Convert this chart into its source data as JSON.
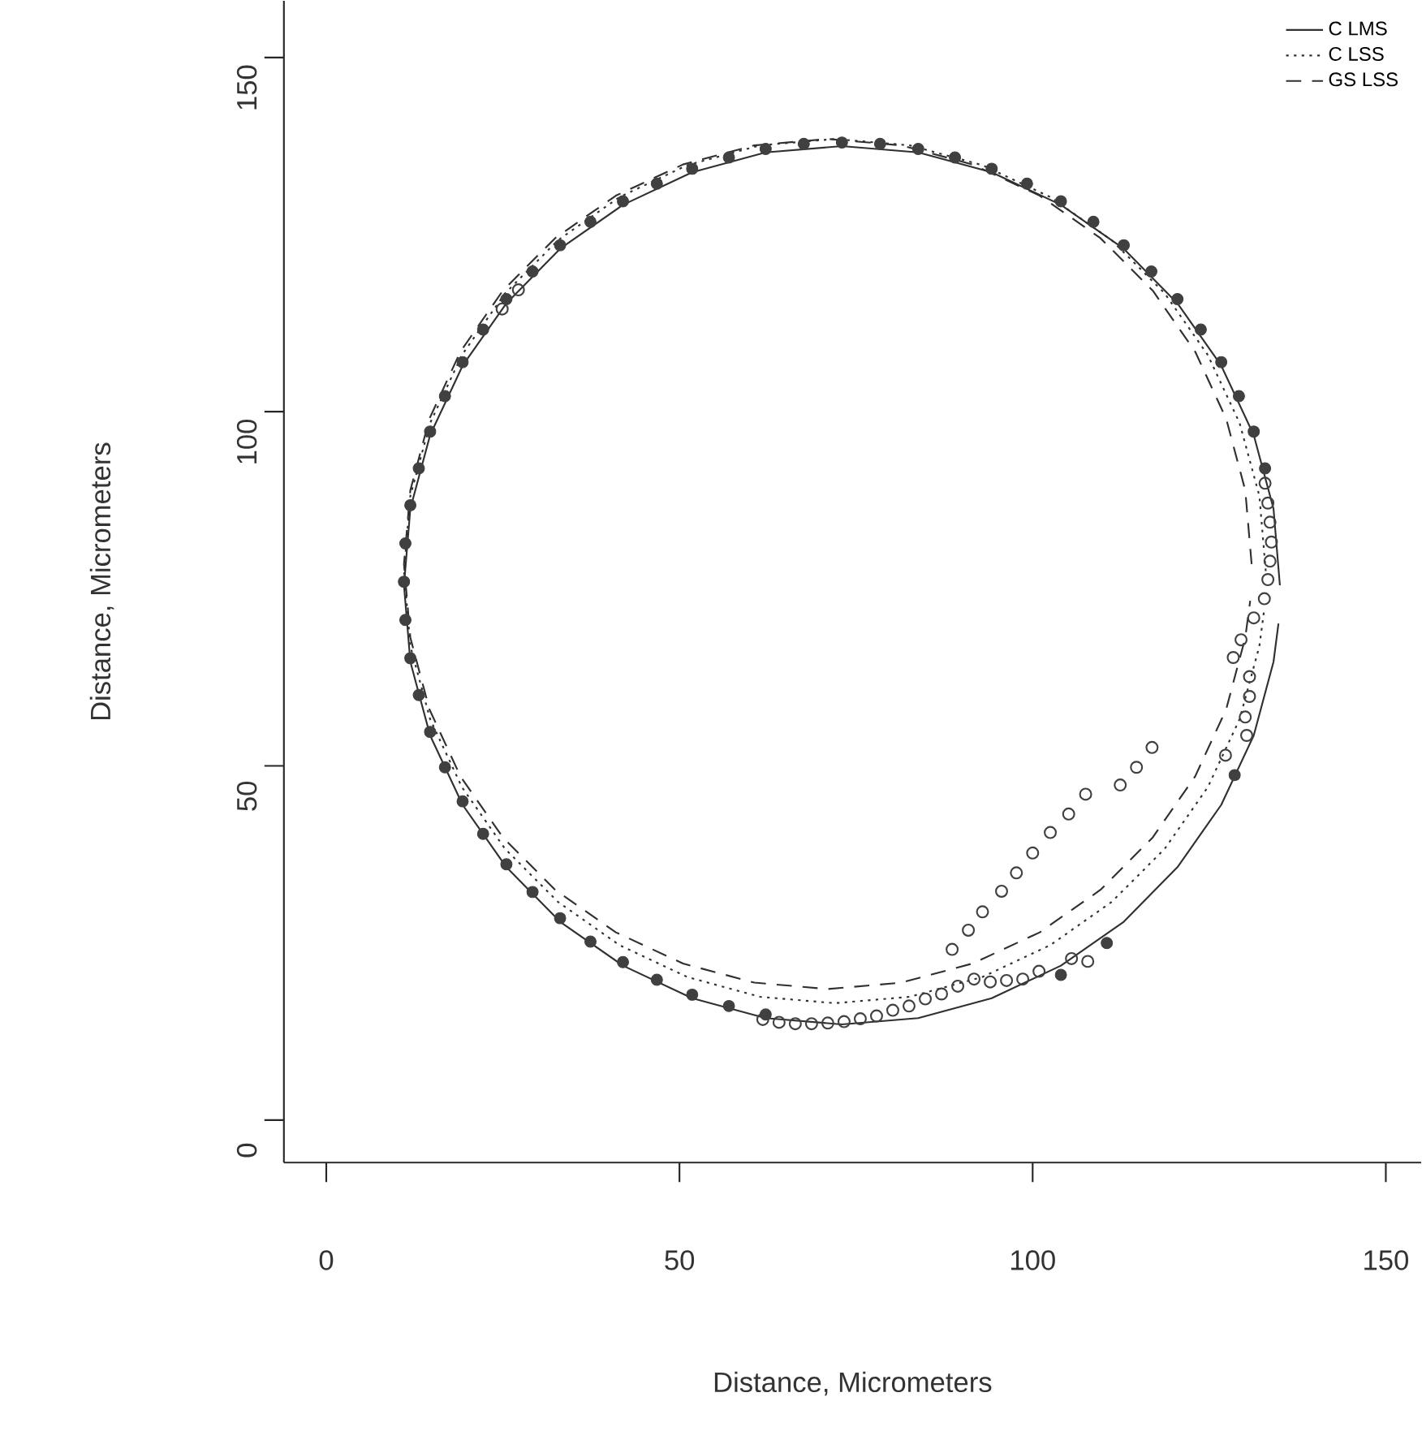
{
  "chart_data": {
    "type": "scatter",
    "xlabel": "Distance, Micrometers",
    "ylabel": "Distance, Micrometers",
    "xlim": [
      -6,
      155
    ],
    "ylim": [
      -6,
      158
    ],
    "xticks": [
      0,
      50,
      100,
      150
    ],
    "yticks": [
      0,
      50,
      100,
      150
    ],
    "grid": false,
    "legend": "top right",
    "series": [
      {
        "marker": "circle",
        "color": "#404040",
        "x": [
          62.2,
          57.0,
          51.8,
          46.8,
          42.0,
          37.4,
          33.1,
          29.2,
          25.5,
          22.2,
          19.3,
          16.8,
          14.7,
          13.1,
          11.9,
          11.2,
          11.0,
          11.2,
          11.9,
          13.1,
          14.7,
          16.8,
          19.3,
          22.2,
          25.5,
          29.2,
          33.1,
          37.4,
          42.0,
          46.8,
          51.8,
          57.0,
          62.2,
          67.6,
          73.0,
          78.4,
          83.8,
          89.0,
          94.2,
          99.2,
          104.0,
          108.6,
          112.9,
          116.8,
          120.5,
          123.8,
          126.7,
          129.2,
          131.3,
          132.9,
          128.6,
          104.0,
          110.5
        ],
        "values": [
          14.9,
          16.1,
          17.7,
          19.8,
          22.3,
          25.2,
          28.5,
          32.2,
          36.1,
          40.4,
          45.0,
          49.8,
          54.8,
          60.0,
          65.2,
          70.6,
          76.0,
          81.4,
          86.8,
          92.0,
          97.2,
          102.2,
          107.0,
          111.6,
          115.9,
          119.8,
          123.5,
          126.8,
          129.7,
          132.2,
          134.3,
          135.9,
          137.1,
          137.8,
          138.0,
          137.8,
          137.1,
          135.9,
          134.3,
          132.2,
          129.7,
          126.8,
          123.5,
          119.8,
          115.9,
          111.6,
          107.0,
          102.2,
          97.2,
          92.0,
          48.7,
          20.5,
          25.0
        ]
      },
      {
        "color": "#404040",
        "x": [
          61.8,
          64.1,
          66.4,
          68.7,
          71.0,
          73.3,
          75.6,
          77.9,
          80.2,
          82.5,
          84.8,
          87.1,
          89.4,
          91.7,
          94.0,
          96.3,
          98.6,
          100.9,
          105.5,
          107.8,
          88.6,
          90.9,
          92.9,
          95.6,
          97.7,
          100.0,
          102.5,
          105.1,
          107.5,
          112.4,
          114.7,
          116.9,
          127.3,
          130.3,
          130.1,
          130.7,
          130.7,
          128.4,
          129.5,
          131.3,
          132.8,
          133.3,
          133.6,
          133.8,
          133.6,
          133.3,
          132.9,
          24.9,
          27.2
        ],
        "values": [
          14.2,
          13.8,
          13.6,
          13.6,
          13.7,
          13.9,
          14.3,
          14.7,
          15.5,
          16.1,
          17.1,
          17.8,
          18.9,
          19.9,
          19.5,
          19.7,
          19.9,
          21.0,
          22.8,
          22.4,
          24.1,
          26.8,
          29.4,
          32.3,
          34.9,
          37.7,
          40.6,
          43.2,
          46.0,
          47.3,
          49.8,
          52.6,
          51.5,
          54.3,
          56.9,
          59.8,
          62.6,
          65.3,
          67.8,
          70.9,
          73.6,
          76.3,
          78.9,
          81.6,
          84.4,
          87.1,
          89.9,
          114.5,
          117.2
        ]
      },
      {
        "type": "line",
        "name": "C LMS",
        "line_style": "solid",
        "color": "#303030",
        "x": [
          135.0,
          134.1,
          131.3,
          126.7,
          120.5,
          112.9,
          104.0,
          94.2,
          83.8,
          73.0,
          62.2,
          51.8,
          42.0,
          33.1,
          25.5,
          19.3,
          14.7,
          11.9,
          11.0,
          11.9,
          14.7,
          19.3,
          25.5,
          33.1,
          42.0,
          51.8,
          62.2,
          73.0,
          83.8,
          94.2,
          104.0,
          112.9,
          120.5,
          126.7,
          131.3,
          134.1,
          134.8
        ],
        "values": [
          75.5,
          86.3,
          96.7,
          106.5,
          115.3,
          123.0,
          129.2,
          133.8,
          136.6,
          137.5,
          136.6,
          133.8,
          129.2,
          123.0,
          115.3,
          106.5,
          96.7,
          86.3,
          75.5,
          64.7,
          54.3,
          44.5,
          35.7,
          28.0,
          21.8,
          17.2,
          14.4,
          13.5,
          14.4,
          17.2,
          21.8,
          28.0,
          35.7,
          44.5,
          54.3,
          64.7,
          70.1
        ]
      },
      {
        "type": "line",
        "name": "C LSS",
        "line_style": "dotted",
        "color": "#303030",
        "x": [
          133.0,
          132.1,
          129.3,
          124.8,
          118.7,
          111.2,
          102.5,
          92.9,
          82.6,
          72.0,
          61.4,
          51.1,
          41.5,
          32.8,
          25.3,
          19.2,
          14.7,
          11.9,
          11.0,
          11.9,
          14.7,
          19.2,
          25.3,
          32.8,
          41.5,
          51.1,
          61.4,
          72.0,
          82.6,
          92.9,
          102.5,
          111.2,
          118.7,
          124.8,
          129.3,
          132.1,
          132.8
        ],
        "values": [
          77.5,
          88.1,
          98.4,
          108.0,
          116.7,
          124.2,
          130.3,
          134.8,
          137.6,
          138.5,
          137.6,
          134.8,
          130.3,
          124.2,
          116.7,
          108.0,
          98.4,
          88.1,
          77.5,
          66.9,
          56.6,
          47.0,
          38.3,
          30.8,
          24.7,
          20.2,
          17.4,
          16.5,
          17.4,
          20.2,
          24.7,
          30.8,
          38.3,
          47.0,
          56.6,
          66.9,
          72.2
        ]
      },
      {
        "type": "line",
        "name": "GS LSS",
        "line_style": "dashed",
        "color": "#303030",
        "x": [
          131.0,
          130.1,
          127.4,
          123.0,
          117.0,
          109.6,
          101.0,
          91.5,
          81.4,
          71.0,
          60.6,
          50.5,
          41.0,
          32.4,
          25.0,
          19.0,
          14.6,
          11.9,
          11.0,
          11.9,
          14.6,
          19.0,
          25.0,
          32.4,
          41.0,
          50.5,
          60.6,
          71.0,
          81.4,
          91.5,
          101.0,
          109.6,
          117.0,
          123.0,
          127.4,
          130.1,
          130.8
        ],
        "values": [
          78.5,
          88.9,
          99.0,
          108.5,
          117.1,
          124.5,
          130.5,
          134.9,
          137.6,
          138.5,
          137.6,
          134.9,
          130.5,
          124.5,
          117.1,
          108.5,
          99.0,
          88.9,
          78.5,
          68.1,
          58.0,
          48.5,
          39.9,
          32.5,
          26.5,
          22.1,
          19.4,
          18.5,
          19.4,
          22.1,
          26.5,
          32.5,
          39.9,
          48.5,
          58.0,
          68.1,
          73.3
        ]
      }
    ]
  }
}
